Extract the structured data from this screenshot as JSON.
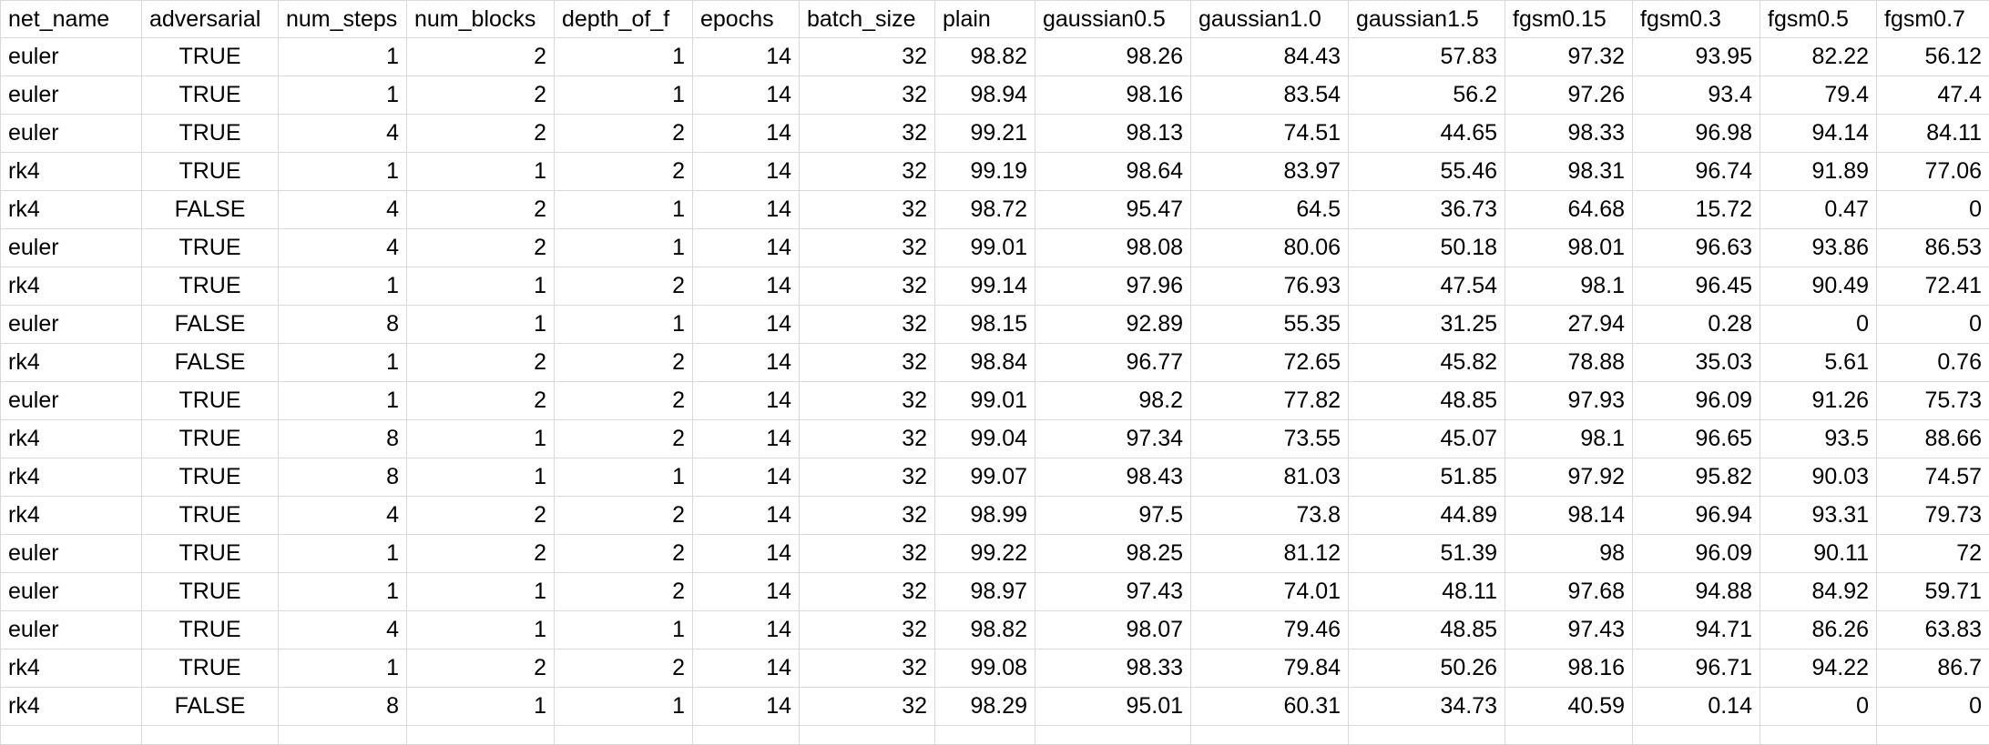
{
  "sheet": {
    "headers": [
      "net_name",
      "adversarial",
      "num_steps",
      "num_blocks",
      "depth_of_f",
      "epochs",
      "batch_size",
      "plain",
      "gaussian0.5",
      "gaussian1.0",
      "gaussian1.5",
      "fgsm0.15",
      "fgsm0.3",
      "fgsm0.5",
      "fgsm0.7"
    ],
    "rows": [
      [
        "euler",
        "TRUE",
        "1",
        "2",
        "1",
        "14",
        "32",
        "98.82",
        "98.26",
        "84.43",
        "57.83",
        "97.32",
        "93.95",
        "82.22",
        "56.12"
      ],
      [
        "euler",
        "TRUE",
        "1",
        "2",
        "1",
        "14",
        "32",
        "98.94",
        "98.16",
        "83.54",
        "56.2",
        "97.26",
        "93.4",
        "79.4",
        "47.4"
      ],
      [
        "euler",
        "TRUE",
        "4",
        "2",
        "2",
        "14",
        "32",
        "99.21",
        "98.13",
        "74.51",
        "44.65",
        "98.33",
        "96.98",
        "94.14",
        "84.11"
      ],
      [
        "rk4",
        "TRUE",
        "1",
        "1",
        "2",
        "14",
        "32",
        "99.19",
        "98.64",
        "83.97",
        "55.46",
        "98.31",
        "96.74",
        "91.89",
        "77.06"
      ],
      [
        "rk4",
        "FALSE",
        "4",
        "2",
        "1",
        "14",
        "32",
        "98.72",
        "95.47",
        "64.5",
        "36.73",
        "64.68",
        "15.72",
        "0.47",
        "0"
      ],
      [
        "euler",
        "TRUE",
        "4",
        "2",
        "1",
        "14",
        "32",
        "99.01",
        "98.08",
        "80.06",
        "50.18",
        "98.01",
        "96.63",
        "93.86",
        "86.53"
      ],
      [
        "rk4",
        "TRUE",
        "1",
        "1",
        "2",
        "14",
        "32",
        "99.14",
        "97.96",
        "76.93",
        "47.54",
        "98.1",
        "96.45",
        "90.49",
        "72.41"
      ],
      [
        "euler",
        "FALSE",
        "8",
        "1",
        "1",
        "14",
        "32",
        "98.15",
        "92.89",
        "55.35",
        "31.25",
        "27.94",
        "0.28",
        "0",
        "0"
      ],
      [
        "rk4",
        "FALSE",
        "1",
        "2",
        "2",
        "14",
        "32",
        "98.84",
        "96.77",
        "72.65",
        "45.82",
        "78.88",
        "35.03",
        "5.61",
        "0.76"
      ],
      [
        "euler",
        "TRUE",
        "1",
        "2",
        "2",
        "14",
        "32",
        "99.01",
        "98.2",
        "77.82",
        "48.85",
        "97.93",
        "96.09",
        "91.26",
        "75.73"
      ],
      [
        "rk4",
        "TRUE",
        "8",
        "1",
        "2",
        "14",
        "32",
        "99.04",
        "97.34",
        "73.55",
        "45.07",
        "98.1",
        "96.65",
        "93.5",
        "88.66"
      ],
      [
        "rk4",
        "TRUE",
        "8",
        "1",
        "1",
        "14",
        "32",
        "99.07",
        "98.43",
        "81.03",
        "51.85",
        "97.92",
        "95.82",
        "90.03",
        "74.57"
      ],
      [
        "rk4",
        "TRUE",
        "4",
        "2",
        "2",
        "14",
        "32",
        "98.99",
        "97.5",
        "73.8",
        "44.89",
        "98.14",
        "96.94",
        "93.31",
        "79.73"
      ],
      [
        "euler",
        "TRUE",
        "1",
        "2",
        "2",
        "14",
        "32",
        "99.22",
        "98.25",
        "81.12",
        "51.39",
        "98",
        "96.09",
        "90.11",
        "72"
      ],
      [
        "euler",
        "TRUE",
        "1",
        "1",
        "2",
        "14",
        "32",
        "98.97",
        "97.43",
        "74.01",
        "48.11",
        "97.68",
        "94.88",
        "84.92",
        "59.71"
      ],
      [
        "euler",
        "TRUE",
        "4",
        "1",
        "1",
        "14",
        "32",
        "98.82",
        "98.07",
        "79.46",
        "48.85",
        "97.43",
        "94.71",
        "86.26",
        "63.83"
      ],
      [
        "rk4",
        "TRUE",
        "1",
        "2",
        "2",
        "14",
        "32",
        "99.08",
        "98.33",
        "79.84",
        "50.26",
        "98.16",
        "96.71",
        "94.22",
        "86.7"
      ],
      [
        "rk4",
        "FALSE",
        "8",
        "1",
        "1",
        "14",
        "32",
        "98.29",
        "95.01",
        "60.31",
        "34.73",
        "40.59",
        "0.14",
        "0",
        "0"
      ]
    ],
    "colors": {
      "grid": "#d9d9d9",
      "text": "#000000",
      "background": "#ffffff"
    }
  }
}
